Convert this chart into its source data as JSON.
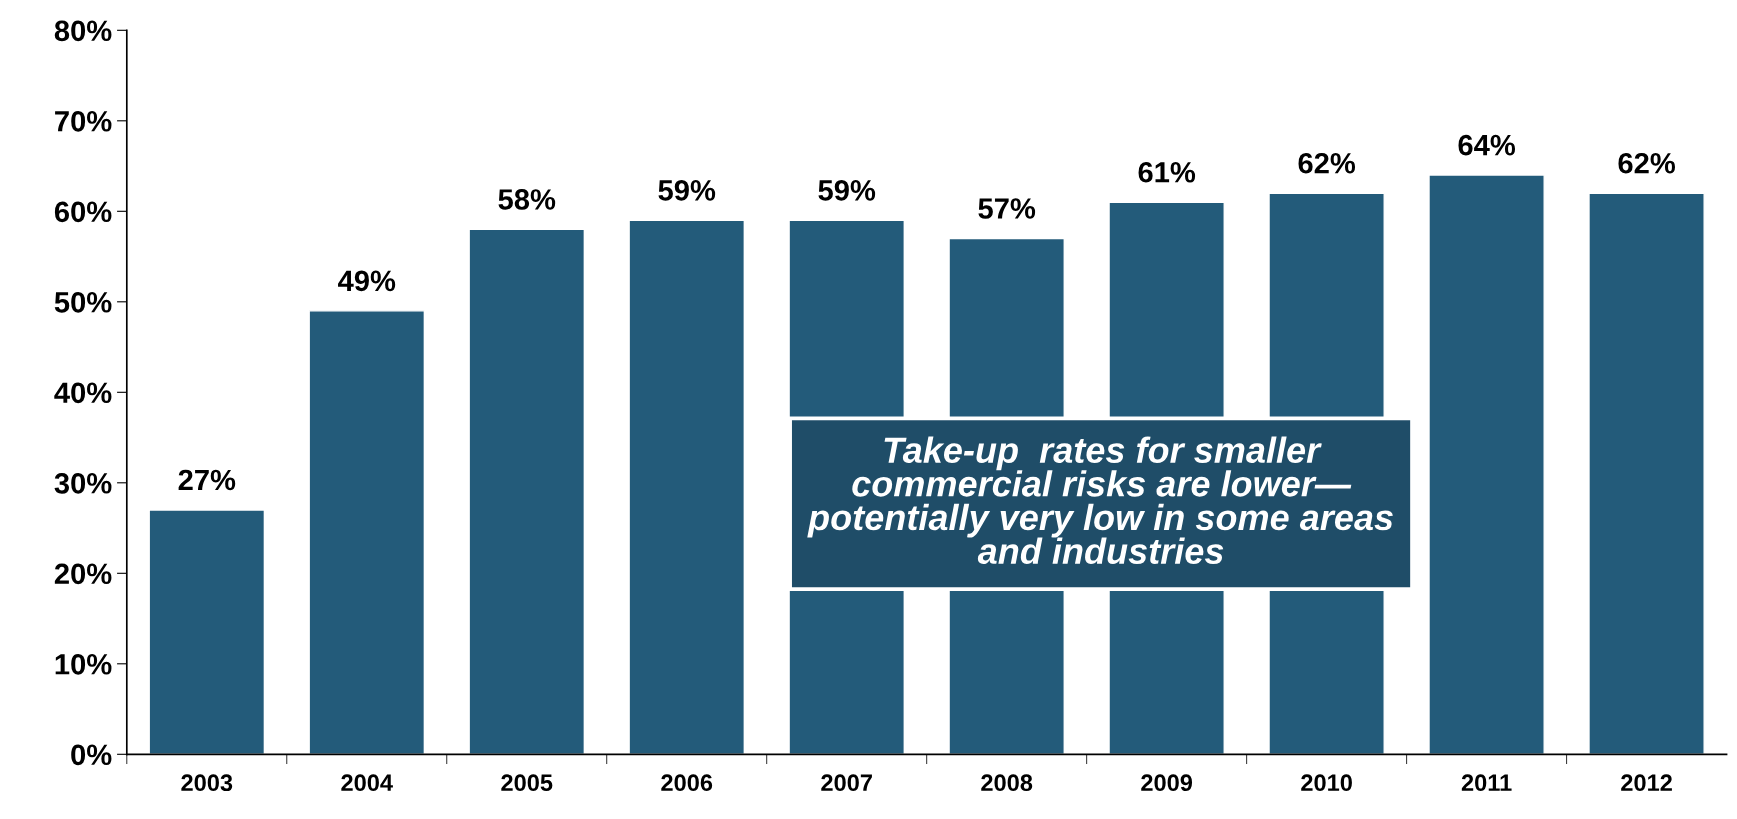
{
  "chart_data": {
    "type": "bar",
    "categories": [
      "2003",
      "2004",
      "2005",
      "2006",
      "2007",
      "2008",
      "2009",
      "2010",
      "2011",
      "2012"
    ],
    "values": [
      27,
      49,
      58,
      59,
      59,
      57,
      61,
      62,
      64,
      62
    ],
    "color": "#235b7a",
    "value_labels": [
      "27%",
      "49%",
      "58%",
      "59%",
      "59%",
      "57%",
      "61%",
      "62%",
      "64%",
      "62%"
    ],
    "ylim": [
      0,
      80
    ],
    "yticks": [
      {
        "value": 0,
        "label": "0%"
      },
      {
        "value": 10,
        "label": "10%"
      },
      {
        "value": 20,
        "label": "20%"
      },
      {
        "value": 30,
        "label": "30%"
      },
      {
        "value": 40,
        "label": "40%"
      },
      {
        "value": 50,
        "label": "50%"
      },
      {
        "value": 60,
        "label": "60%"
      },
      {
        "value": 70,
        "label": "70%"
      },
      {
        "value": 80,
        "label": "80%"
      }
    ],
    "grid": false,
    "annotations": [
      "Take-up  rates for smaller\ncommercial risks are lower—\npotentially very low in some areas\nand industries"
    ]
  }
}
